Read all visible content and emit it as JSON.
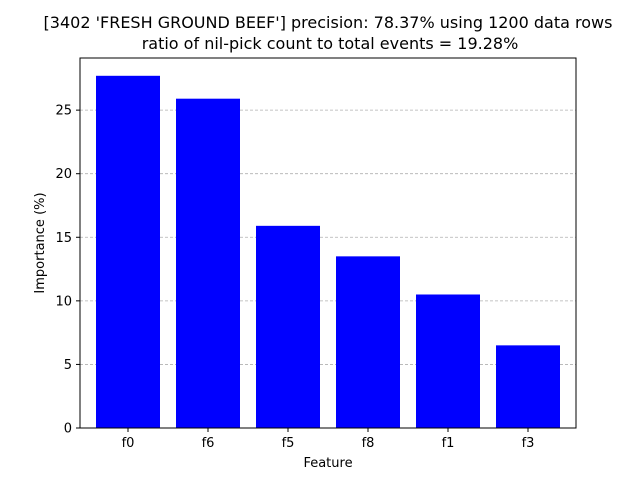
{
  "chart_data": {
    "type": "bar",
    "title_line1": "[3402 'FRESH GROUND BEEF'] precision: 78.37% using 1200 data rows",
    "title_line2": "ratio of nil-pick count to total events = 19.28%",
    "xlabel": "Feature",
    "ylabel": "Importance (%)",
    "categories": [
      "f0",
      "f6",
      "f5",
      "f8",
      "f1",
      "f3"
    ],
    "values": [
      27.7,
      25.9,
      15.9,
      13.5,
      10.5,
      6.5
    ],
    "ylim": [
      0,
      29.1
    ],
    "yticks": [
      0,
      5,
      10,
      15,
      20,
      25
    ],
    "bar_color": "#0000ff",
    "grid": "y-dashed"
  }
}
